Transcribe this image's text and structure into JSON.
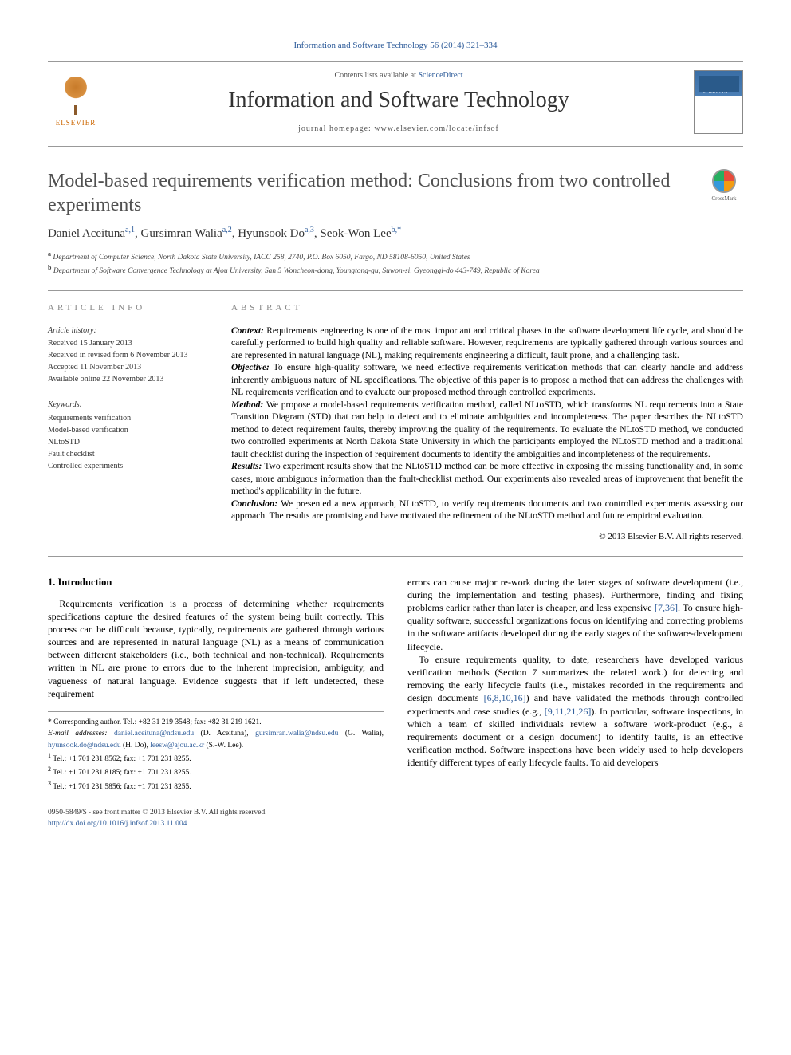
{
  "top_reference": "Information and Software Technology 56 (2014) 321–334",
  "masthead": {
    "contents_prefix": "Contents lists available at ",
    "contents_link": "ScienceDirect",
    "journal_name": "Information and Software Technology",
    "homepage_prefix": "journal homepage: ",
    "homepage_url": "www.elsevier.com/locate/infsof",
    "publisher": "ELSEVIER",
    "cover_text": "INFORMATION\nAND\nSOFTWARE\nTECHNOLOGY"
  },
  "crossmark_label": "CrossMark",
  "title": "Model-based requirements verification method: Conclusions from two controlled experiments",
  "authors": [
    {
      "name": "Daniel Aceituna",
      "marks": "a,1"
    },
    {
      "name": "Gursimran Walia",
      "marks": "a,2"
    },
    {
      "name": "Hyunsook Do",
      "marks": "a,3"
    },
    {
      "name": "Seok-Won Lee",
      "marks": "b,*"
    }
  ],
  "affiliations": [
    {
      "label": "a",
      "text": "Department of Computer Science, North Dakota State University, IACC 258, 2740, P.O. Box 6050, Fargo, ND 58108-6050, United States"
    },
    {
      "label": "b",
      "text": "Department of Software Convergence Technology at Ajou University, San 5 Woncheon-dong, Youngtong-gu, Suwon-si, Gyeonggi-do 443-749, Republic of Korea"
    }
  ],
  "article_info": {
    "heading": "article info",
    "history_label": "Article history:",
    "history": [
      "Received 15 January 2013",
      "Received in revised form 6 November 2013",
      "Accepted 11 November 2013",
      "Available online 22 November 2013"
    ],
    "keywords_label": "Keywords:",
    "keywords": [
      "Requirements verification",
      "Model-based verification",
      "NLtoSTD",
      "Fault checklist",
      "Controlled experiments"
    ]
  },
  "abstract": {
    "heading": "abstract",
    "sections": [
      {
        "label": "Context:",
        "text": " Requirements engineering is one of the most important and critical phases in the software development life cycle, and should be carefully performed to build high quality and reliable software. However, requirements are typically gathered through various sources and are represented in natural language (NL), making requirements engineering a difficult, fault prone, and a challenging task."
      },
      {
        "label": "Objective:",
        "text": " To ensure high-quality software, we need effective requirements verification methods that can clearly handle and address inherently ambiguous nature of NL specifications. The objective of this paper is to propose a method that can address the challenges with NL requirements verification and to evaluate our proposed method through controlled experiments."
      },
      {
        "label": "Method:",
        "text": " We propose a model-based requirements verification method, called NLtoSTD, which transforms NL requirements into a State Transition Diagram (STD) that can help to detect and to eliminate ambiguities and incompleteness. The paper describes the NLtoSTD method to detect requirement faults, thereby improving the quality of the requirements. To evaluate the NLtoSTD method, we conducted two controlled experiments at North Dakota State University in which the participants employed the NLtoSTD method and a traditional fault checklist during the inspection of requirement documents to identify the ambiguities and incompleteness of the requirements."
      },
      {
        "label": "Results:",
        "text": " Two experiment results show that the NLtoSTD method can be more effective in exposing the missing functionality and, in some cases, more ambiguous information than the fault-checklist method. Our experiments also revealed areas of improvement that benefit the method's applicability in the future."
      },
      {
        "label": "Conclusion:",
        "text": " We presented a new approach, NLtoSTD, to verify requirements documents and two controlled experiments assessing our approach. The results are promising and have motivated the refinement of the NLtoSTD method and future empirical evaluation."
      }
    ],
    "copyright": "© 2013 Elsevier B.V. All rights reserved."
  },
  "body": {
    "section_number": "1.",
    "section_title": "Introduction",
    "left_paragraphs": [
      "Requirements verification is a process of determining whether requirements specifications capture the desired features of the system being built correctly. This process can be difficult because, typically, requirements are gathered through various sources and are represented in natural language (NL) as a means of communication between different stakeholders (i.e., both technical and non-technical). Requirements written in NL are prone to errors due to the inherent imprecision, ambiguity, and vagueness of natural language. Evidence suggests that if left undetected, these requirement"
    ],
    "right_paragraphs": [
      {
        "text": "errors can cause major re-work during the later stages of software development (i.e., during the implementation and testing phases). Furthermore, finding and fixing problems earlier rather than later is cheaper, and less expensive ",
        "ref1": "[7,36]",
        "tail": ". To ensure high-quality software, successful organizations focus on identifying and correcting problems in the software artifacts developed during the early stages of the software-development lifecycle."
      },
      {
        "text": "To ensure requirements quality, to date, researchers have developed various verification methods (Section 7 summarizes the related work.) for detecting and removing the early lifecycle faults (i.e., mistakes recorded in the requirements and design documents ",
        "ref1": "[6,8,10,16]",
        "mid": ") and have validated the methods through controlled experiments and case studies (e.g., ",
        "ref2": "[9,11,21,26]",
        "tail": "). In particular, software inspections, in which a team of skilled individuals review a software work-product (e.g., a requirements document or a design document) to identify faults, is an effective verification method. Software inspections have been widely used to help developers identify different types of early lifecycle faults. To aid developers"
      }
    ]
  },
  "footnotes": {
    "corresponding": "* Corresponding author. Tel.: +82 31 219 3548; fax: +82 31 219 1621.",
    "email_label": "E-mail addresses: ",
    "emails": [
      {
        "addr": "daniel.aceituna@ndsu.edu",
        "who": " (D. Aceituna), "
      },
      {
        "addr": "gursimran.walia@ndsu.edu",
        "who": " (G. Walia), "
      },
      {
        "addr": "hyunsook.do@ndsu.edu",
        "who": " (H. Do), "
      },
      {
        "addr": "leesw@ajou.ac.kr",
        "who": " (S.-W. Lee)."
      }
    ],
    "tels": [
      {
        "label": "1",
        "text": " Tel.: +1 701 231 8562; fax: +1 701 231 8255."
      },
      {
        "label": "2",
        "text": " Tel.: +1 701 231 8185; fax: +1 701 231 8255."
      },
      {
        "label": "3",
        "text": " Tel.: +1 701 231 5856; fax: +1 701 231 8255."
      }
    ]
  },
  "bottom": {
    "issn_line": "0950-5849/$ - see front matter © 2013 Elsevier B.V. All rights reserved.",
    "doi": "http://dx.doi.org/10.1016/j.infsof.2013.11.004"
  },
  "colors": {
    "link": "#2e5c9a",
    "heading_gray": "#888888",
    "rule": "#999999",
    "elsevier_orange": "#cc6600"
  }
}
